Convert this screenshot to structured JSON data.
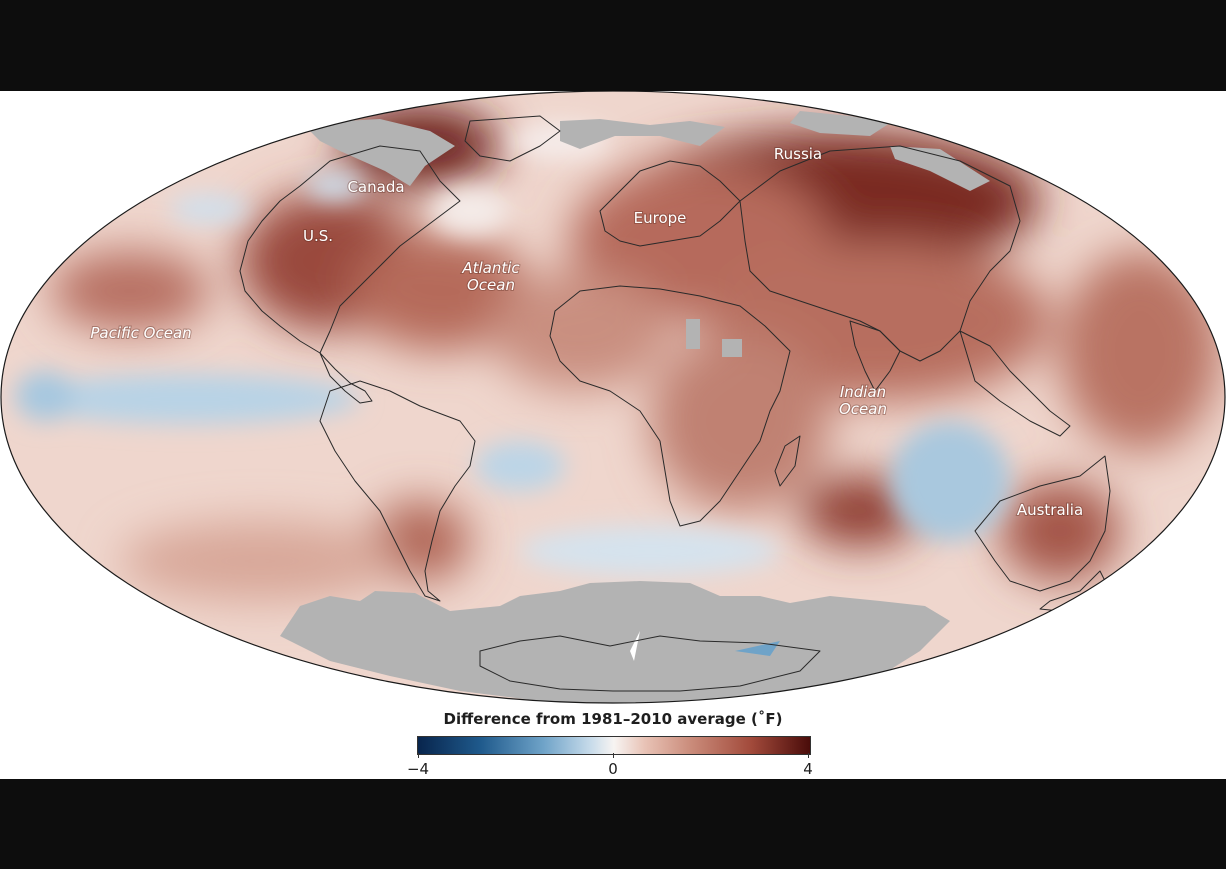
{
  "map": {
    "projection": "Mollweide",
    "labels": {
      "russia": "Russia",
      "canada": "Canada",
      "europe": "Europe",
      "us": "U.S.",
      "atlantic_1": "Atlantic",
      "atlantic_2": "Ocean",
      "pacific": "Pacific Ocean",
      "indian_1": "Indian",
      "indian_2": "Ocean",
      "australia": "Australia"
    },
    "colors": {
      "warm_strong": "#4a0c0a",
      "warm": "#b4695a",
      "neutral": "#f7f4f2",
      "cool": "#6fa3c8",
      "cool_strong": "#08254d",
      "no_data": "#b3b3b3"
    }
  },
  "legend": {
    "title": "Difference from 1981–2010 average (˚F)",
    "min_label": "−4",
    "mid_label": "0",
    "max_label": "4",
    "range": [
      -4,
      4
    ]
  }
}
